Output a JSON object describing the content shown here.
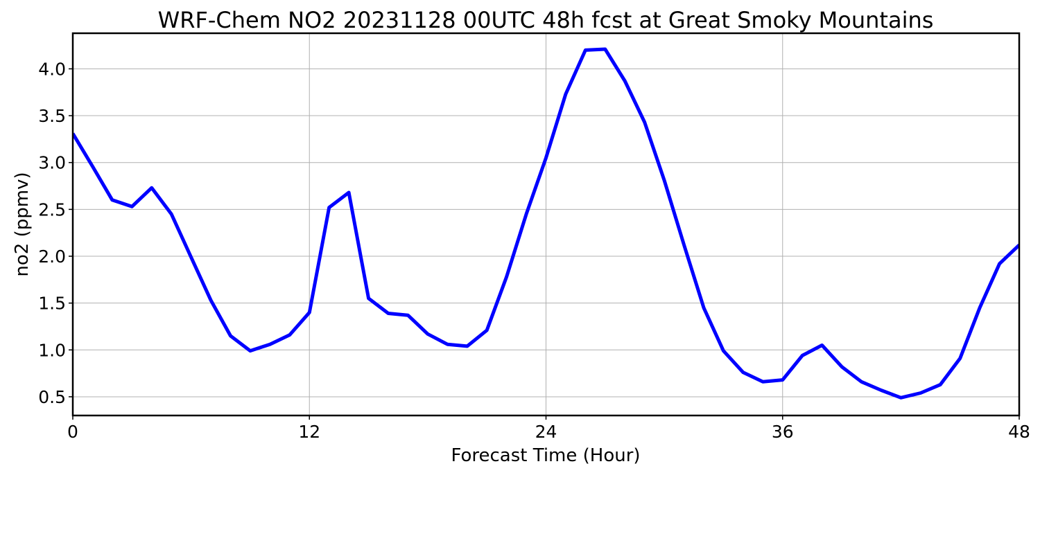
{
  "chart_data": {
    "type": "line",
    "title": "WRF-Chem NO2  20231128 00UTC 48h fcst at Great Smoky Mountains",
    "xlabel": "Forecast Time (Hour)",
    "ylabel": "no2  (ppmv)",
    "xlim": [
      0,
      48
    ],
    "ylim": [
      0.3,
      4.38
    ],
    "xticks": [
      0,
      12,
      24,
      36,
      48
    ],
    "xtick_labels": [
      "0",
      "12",
      "24",
      "36",
      "48"
    ],
    "yticks": [
      0.5,
      1.0,
      1.5,
      2.0,
      2.5,
      3.0,
      3.5,
      4.0
    ],
    "ytick_labels": [
      "0.5",
      "1.0",
      "1.5",
      "2.0",
      "2.5",
      "3.0",
      "3.5",
      "4.0"
    ],
    "grid": true,
    "series": [
      {
        "color": "#0000ff",
        "x": [
          0,
          1,
          2,
          3,
          4,
          5,
          6,
          7,
          8,
          9,
          10,
          11,
          12,
          13,
          14,
          15,
          16,
          17,
          18,
          19,
          20,
          21,
          22,
          23,
          24,
          25,
          26,
          27,
          28,
          29,
          30,
          31,
          32,
          33,
          34,
          35,
          36,
          37,
          38,
          39,
          40,
          41,
          42,
          43,
          44,
          45,
          46,
          47,
          48
        ],
        "values": [
          3.31,
          2.96,
          2.6,
          2.53,
          2.73,
          2.45,
          1.99,
          1.53,
          1.15,
          0.99,
          1.06,
          1.16,
          1.4,
          2.52,
          2.68,
          1.55,
          1.39,
          1.37,
          1.17,
          1.06,
          1.04,
          1.21,
          1.78,
          2.45,
          3.05,
          3.73,
          4.2,
          4.21,
          3.87,
          3.43,
          2.81,
          2.12,
          1.45,
          0.99,
          0.76,
          0.66,
          0.68,
          0.94,
          1.05,
          0.82,
          0.66,
          0.57,
          0.49,
          0.54,
          0.63,
          0.91,
          1.45,
          1.92,
          2.12
        ]
      }
    ]
  }
}
